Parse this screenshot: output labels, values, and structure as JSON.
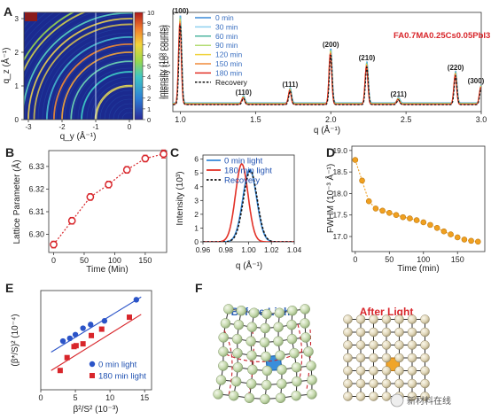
{
  "panels": {
    "A": {
      "letter": "A",
      "map": {
        "xlabel": "q_y (Å⁻¹)",
        "ylabel": "q_z (Å⁻¹)",
        "xticks": [
          "-3",
          "-2",
          "-1",
          "0"
        ],
        "yticks": [
          "0",
          "1",
          "2",
          "3"
        ],
        "colorbar": {
          "label": "Intensity (10³ counts)",
          "ticks": [
            "0",
            "1",
            "2",
            "3",
            "4",
            "5",
            "6",
            "7",
            "8",
            "9",
            "10"
          ],
          "range": [
            0,
            10
          ]
        }
      },
      "chart_data": {
        "type": "line",
        "title": "FA0.7MA0.25Cs0.05PbI3",
        "xlabel": "q (Å⁻¹)",
        "ylabel": "Intensity (10³ counts)",
        "xlim": [
          0.95,
          3.0
        ],
        "xticks": [
          "1.0",
          "1.5",
          "2.0",
          "2.5",
          "3.0"
        ],
        "series": [
          {
            "name": "0 min",
            "color": "#3a8ad8"
          },
          {
            "name": "30 min",
            "color": "#8fd0ef"
          },
          {
            "name": "60 min",
            "color": "#4fb6a0"
          },
          {
            "name": "90 min",
            "color": "#b3dc73"
          },
          {
            "name": "120 min",
            "color": "#f0d23c"
          },
          {
            "name": "150 min",
            "color": "#f08a3a"
          },
          {
            "name": "180 min",
            "color": "#e23026"
          },
          {
            "name": "Recovery",
            "color": "#111111",
            "dashed": true
          }
        ],
        "peaks": [
          {
            "label": "(100)",
            "q": 1.0,
            "height": 1.0
          },
          {
            "label": "(110)",
            "q": 1.42,
            "height": 0.08
          },
          {
            "label": "(111)",
            "q": 1.73,
            "height": 0.17
          },
          {
            "label": "(200)",
            "q": 2.0,
            "height": 0.62
          },
          {
            "label": "(210)",
            "q": 2.24,
            "height": 0.47
          },
          {
            "label": "(211)",
            "q": 2.45,
            "height": 0.06
          },
          {
            "label": "(220)",
            "q": 2.83,
            "height": 0.36
          },
          {
            "label": "(300)",
            "q": 3.0,
            "height": 0.21
          }
        ]
      }
    },
    "B": {
      "letter": "B",
      "chart_data": {
        "type": "scatter",
        "xlabel": "Time (Min)",
        "ylabel": "Lattice Parameter (Å)",
        "xlim": [
          -8,
          185
        ],
        "ylim": [
          6.292,
          6.337
        ],
        "xticks": [
          0,
          50,
          100,
          150
        ],
        "yticks": [
          "6.30",
          "6.31",
          "6.32",
          "6.33"
        ],
        "x": [
          0,
          30,
          60,
          90,
          120,
          150,
          180
        ],
        "y": [
          6.2955,
          6.306,
          6.3165,
          6.322,
          6.3285,
          6.3335,
          6.3355
        ],
        "err": [
          0.0015,
          0.0015,
          0.0015,
          0.0015,
          0.0015,
          0.0015,
          0.0018
        ],
        "color": "#d8262b"
      }
    },
    "C": {
      "letter": "C",
      "chart_data": {
        "type": "line",
        "xlabel": "q (Å⁻¹)",
        "ylabel": "Intensity (10³)",
        "xlim": [
          0.96,
          1.04
        ],
        "ylim": [
          0,
          6.3
        ],
        "xticks": [
          "0.96",
          "0.98",
          "1.00",
          "1.02",
          "1.04"
        ],
        "yticks": [
          "0",
          "1",
          "2",
          "3",
          "4",
          "5",
          "6"
        ],
        "series": [
          {
            "name": "0 min light",
            "color": "#3a8ad8",
            "center": 1.001,
            "amplitude": 5.25,
            "width": 0.0085
          },
          {
            "name": "180 min light",
            "color": "#e23026",
            "center": 0.994,
            "amplitude": 5.65,
            "width": 0.0078
          },
          {
            "name": "Recovery",
            "color": "#111111",
            "center": 1.0015,
            "amplitude": 5.15,
            "width": 0.0085,
            "dashed": true
          }
        ]
      }
    },
    "D": {
      "letter": "D",
      "chart_data": {
        "type": "scatter",
        "xlabel": "Time (min)",
        "ylabel": "FWHM (10⁻³ Å⁻¹)",
        "xlim": [
          -5,
          190
        ],
        "ylim": [
          16.65,
          19.1
        ],
        "xticks": [
          0,
          50,
          100,
          150
        ],
        "yticks": [
          "17.0",
          "17.5",
          "18.0",
          "18.5",
          "19.0"
        ],
        "x": [
          0,
          10,
          20,
          30,
          40,
          50,
          60,
          70,
          80,
          90,
          100,
          110,
          120,
          130,
          140,
          150,
          160,
          170,
          180
        ],
        "y": [
          18.78,
          18.3,
          17.82,
          17.65,
          17.6,
          17.55,
          17.5,
          17.45,
          17.42,
          17.38,
          17.33,
          17.27,
          17.2,
          17.12,
          17.05,
          16.98,
          16.93,
          16.9,
          16.88
        ],
        "color": "#f0a020"
      }
    },
    "E": {
      "letter": "E",
      "chart_data": {
        "type": "scatter",
        "xlabel": "β²/S² (10⁻³)",
        "ylabel": "(β*/S)² (10⁻⁴)",
        "xlim": [
          0,
          16
        ],
        "ylim": [
          0,
          5.4
        ],
        "xticks": [
          0,
          5,
          10,
          15
        ],
        "series": [
          {
            "name": "0 min light",
            "color": "#2b54c8",
            "marker": "circle",
            "x": [
              3.2,
              4.2,
              5.0,
              6.1,
              7.2,
              9.2,
              13.8
            ],
            "y": [
              2.65,
              2.8,
              3.0,
              3.35,
              3.55,
              3.75,
              4.9
            ],
            "fit": {
              "x": [
                1.5,
                14.5
              ],
              "y": [
                2.05,
                5.05
              ]
            }
          },
          {
            "name": "180 min light",
            "color": "#d8262b",
            "marker": "square",
            "x": [
              2.8,
              3.8,
              4.8,
              5.1,
              6.1,
              7.3,
              8.8,
              12.8
            ],
            "y": [
              1.05,
              1.75,
              2.35,
              2.4,
              2.5,
              2.95,
              3.3,
              3.95
            ],
            "fit": {
              "x": [
                1.5,
                14.5
              ],
              "y": [
                1.05,
                4.1
              ]
            }
          }
        ]
      }
    },
    "F": {
      "letter": "F",
      "before_title": "Before Light",
      "after_title": "After Light",
      "watermark": "新材料在线"
    }
  },
  "colors": {
    "text": "#222222",
    "axis": "#333333",
    "before_title": "#2a5fb5",
    "after_title": "#d8262b",
    "atom": "#c7dbb0",
    "atom_after": "#e2dcc0",
    "bond": "#2c2c2c",
    "strain": "#c8202a",
    "highlight_blue": "#3a8edb",
    "highlight_orange": "#f0a52a"
  }
}
